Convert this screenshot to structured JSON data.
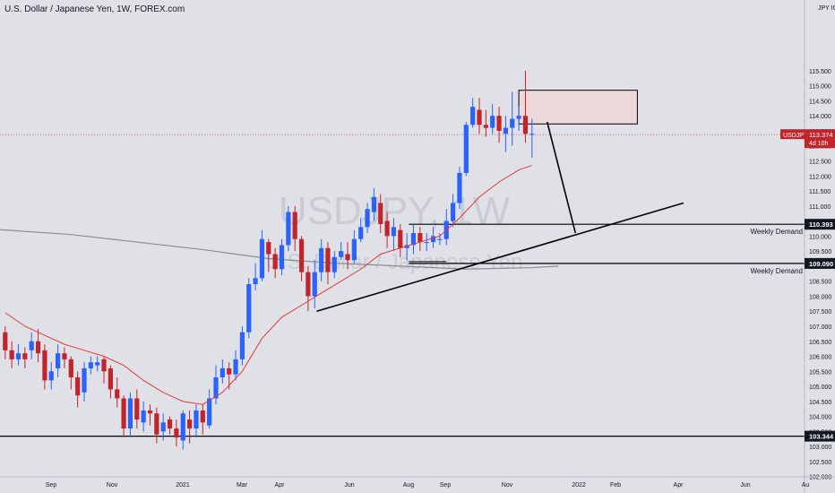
{
  "header": {
    "title": "U.S. Dollar / Japanese Yen, 1W, FOREX.com"
  },
  "watermark": {
    "symbol": "USDJPY, 1W",
    "name": "U.S. Dollar / Japanese Yen"
  },
  "axis": {
    "currency": "JPY",
    "currency_suffix": "IO"
  },
  "colors": {
    "up": "#2962ff",
    "down": "#c2242b",
    "ema_fast": "#e03b3b",
    "ma_slow": "#8a8d96",
    "lines": "#000000",
    "zone_fill": "#f2d4d6"
  },
  "chart_data": {
    "type": "candlestick",
    "title": "U.S. Dollar / Japanese Yen, 1W, FOREX.com",
    "ylim": [
      101.75,
      115.95
    ],
    "y_ticks": [
      "115.500",
      "115.000",
      "114.500",
      "114.000",
      "113.500",
      "113.000",
      "112.500",
      "112.000",
      "111.500",
      "111.000",
      "110.500",
      "110.000",
      "109.500",
      "109.000",
      "108.500",
      "108.000",
      "107.500",
      "107.000",
      "106.500",
      "106.000",
      "105.500",
      "105.000",
      "104.500",
      "104.000",
      "103.500",
      "103.000",
      "102.500",
      "102.000"
    ],
    "x_ticks": [
      "Sep",
      "Nov",
      "2021",
      "Mar",
      "Apr",
      "Jun",
      "Aug",
      "Sep",
      "Nov",
      "2022",
      "Feb",
      "Apr",
      "Jun",
      "Au"
    ],
    "last_price": {
      "symbol": "USDJPY",
      "value": "113.374",
      "countdown": "4d 10h",
      "y": 113.374
    },
    "levels": [
      {
        "value": 110.393,
        "label": "110.393",
        "zone_label": "Weekly Demand"
      },
      {
        "value": 109.09,
        "label": "109.090",
        "zone_label": "Weekly Demand"
      },
      {
        "value": 103.344,
        "label": "103.344",
        "zone_label": ""
      }
    ],
    "candles": [
      [
        106.8,
        106.2,
        107.0,
        105.9
      ],
      [
        106.2,
        105.9,
        106.5,
        105.6
      ],
      [
        105.9,
        106.1,
        106.4,
        105.7
      ],
      [
        106.1,
        105.9,
        106.3,
        105.6
      ],
      [
        106.2,
        106.5,
        106.8,
        105.9
      ],
      [
        106.5,
        106.1,
        106.9,
        105.8
      ],
      [
        106.2,
        105.2,
        106.4,
        104.9
      ],
      [
        105.2,
        105.5,
        105.8,
        104.9
      ],
      [
        105.6,
        106.1,
        106.4,
        105.3
      ],
      [
        106.1,
        105.9,
        106.3,
        105.6
      ],
      [
        105.9,
        105.3,
        106.0,
        104.9
      ],
      [
        105.3,
        104.7,
        105.5,
        104.3
      ],
      [
        104.8,
        105.6,
        105.8,
        104.5
      ],
      [
        105.6,
        105.8,
        106.0,
        105.4
      ],
      [
        105.7,
        105.8,
        106.0,
        105.5
      ],
      [
        105.9,
        105.5,
        106.0,
        105.1
      ],
      [
        105.6,
        104.9,
        105.7,
        104.6
      ],
      [
        104.9,
        104.6,
        105.3,
        104.3
      ],
      [
        104.6,
        103.6,
        104.7,
        103.3
      ],
      [
        103.6,
        104.6,
        104.8,
        103.3
      ],
      [
        104.6,
        103.9,
        104.9,
        103.6
      ],
      [
        103.8,
        104.2,
        104.5,
        103.5
      ],
      [
        104.2,
        104.1,
        104.4,
        103.7
      ],
      [
        104.1,
        103.4,
        104.3,
        103.1
      ],
      [
        103.5,
        103.8,
        104.1,
        103.2
      ],
      [
        103.9,
        103.6,
        104.0,
        103.4
      ],
      [
        103.6,
        103.3,
        103.9,
        103.0
      ],
      [
        103.2,
        104.1,
        104.2,
        102.9
      ],
      [
        103.9,
        103.6,
        104.2,
        103.1
      ],
      [
        103.6,
        104.2,
        104.4,
        103.3
      ],
      [
        104.2,
        103.8,
        104.4,
        103.4
      ],
      [
        103.7,
        104.6,
        104.9,
        103.6
      ],
      [
        104.6,
        105.3,
        105.7,
        104.4
      ],
      [
        105.3,
        105.6,
        105.9,
        105.1
      ],
      [
        105.6,
        105.4,
        105.8,
        104.9
      ],
      [
        105.4,
        105.9,
        106.2,
        105.2
      ],
      [
        105.9,
        106.8,
        107.0,
        105.7
      ],
      [
        106.8,
        108.4,
        108.6,
        106.6
      ],
      [
        108.4,
        108.6,
        109.1,
        108.2
      ],
      [
        108.6,
        109.9,
        110.2,
        108.5
      ],
      [
        109.8,
        109.4,
        109.9,
        108.8
      ],
      [
        109.4,
        108.9,
        109.6,
        108.6
      ],
      [
        108.9,
        109.7,
        109.9,
        108.7
      ],
      [
        109.7,
        110.8,
        111.0,
        109.5
      ],
      [
        110.8,
        109.9,
        111.0,
        109.5
      ],
      [
        109.9,
        108.8,
        110.0,
        108.5
      ],
      [
        108.8,
        108.0,
        109.0,
        107.5
      ],
      [
        108.0,
        108.8,
        109.2,
        107.6
      ],
      [
        108.8,
        109.6,
        109.9,
        108.5
      ],
      [
        109.6,
        108.8,
        109.8,
        108.4
      ],
      [
        108.8,
        109.3,
        109.5,
        108.6
      ],
      [
        109.3,
        109.5,
        109.8,
        109.2
      ],
      [
        109.4,
        109.2,
        109.8,
        108.9
      ],
      [
        109.2,
        109.9,
        110.2,
        109.1
      ],
      [
        109.9,
        110.3,
        110.6,
        109.8
      ],
      [
        110.3,
        110.9,
        111.1,
        110.1
      ],
      [
        110.8,
        111.3,
        111.6,
        110.5
      ],
      [
        111.1,
        110.4,
        111.4,
        110.1
      ],
      [
        110.5,
        110.0,
        110.8,
        109.6
      ],
      [
        110.0,
        110.3,
        110.6,
        109.5
      ],
      [
        110.2,
        109.6,
        110.4,
        109.3
      ],
      [
        109.6,
        109.7,
        110.1,
        109.2
      ],
      [
        109.7,
        110.1,
        110.4,
        109.4
      ],
      [
        110.1,
        109.8,
        110.3,
        109.5
      ],
      [
        109.8,
        109.8,
        110.1,
        109.5
      ],
      [
        109.8,
        110.0,
        110.3,
        109.6
      ],
      [
        109.9,
        109.9,
        110.1,
        109.7
      ],
      [
        109.9,
        110.5,
        110.9,
        109.7
      ],
      [
        110.5,
        111.1,
        111.4,
        110.3
      ],
      [
        111.1,
        112.1,
        112.3,
        110.9
      ],
      [
        112.1,
        113.7,
        113.8,
        112.0
      ],
      [
        113.7,
        114.3,
        114.6,
        113.6
      ],
      [
        114.2,
        113.7,
        114.6,
        113.4
      ],
      [
        113.7,
        113.6,
        114.2,
        113.3
      ],
      [
        113.6,
        114.0,
        114.4,
        113.4
      ],
      [
        114.0,
        113.5,
        114.3,
        113.1
      ],
      [
        113.4,
        113.6,
        114.0,
        112.8
      ],
      [
        113.6,
        113.9,
        114.8,
        113.0
      ],
      [
        113.9,
        114.0,
        114.3,
        113.5
      ],
      [
        114.0,
        113.4,
        115.5,
        113.1
      ],
      [
        113.4,
        113.4,
        113.9,
        112.6
      ]
    ],
    "ema": [
      [
        0,
        107.45
      ],
      [
        3,
        107.0
      ],
      [
        6,
        106.7
      ],
      [
        9,
        106.4
      ],
      [
        12,
        106.2
      ],
      [
        15,
        106.0
      ],
      [
        18,
        105.7
      ],
      [
        21,
        105.2
      ],
      [
        24,
        104.8
      ],
      [
        27,
        104.5
      ],
      [
        30,
        104.4
      ],
      [
        33,
        104.8
      ],
      [
        36,
        105.5
      ],
      [
        39,
        106.6
      ],
      [
        42,
        107.3
      ],
      [
        45,
        107.7
      ],
      [
        48,
        108.1
      ],
      [
        51,
        108.5
      ],
      [
        54,
        108.9
      ],
      [
        57,
        109.4
      ],
      [
        60,
        109.6
      ],
      [
        63,
        109.8
      ],
      [
        66,
        110.0
      ],
      [
        69,
        110.6
      ],
      [
        72,
        111.3
      ],
      [
        75,
        111.8
      ],
      [
        78,
        112.2
      ],
      [
        80,
        112.35
      ]
    ],
    "ma_slow": [
      [
        -10,
        110.3
      ],
      [
        0,
        110.2
      ],
      [
        10,
        110.05
      ],
      [
        20,
        109.8
      ],
      [
        30,
        109.55
      ],
      [
        40,
        109.25
      ],
      [
        50,
        109.1
      ],
      [
        60,
        109.0
      ],
      [
        70,
        108.9
      ],
      [
        80,
        108.95
      ],
      [
        84,
        109.0
      ]
    ],
    "annotations": {
      "rectangle": {
        "x0": 78,
        "x1": 96,
        "y0": 113.73,
        "y1": 114.85
      },
      "trendline": {
        "x0": 47.3,
        "y0": 107.5,
        "x1": 103,
        "y1": 111.1
      },
      "projection": [
        [
          82.3,
          113.8
        ],
        [
          86.6,
          110.1
        ]
      ],
      "small_line": {
        "x0": 61.3,
        "x1": 67,
        "y": 109.15
      },
      "level_110_start": 61.3,
      "level_109_start": 61.3
    }
  }
}
